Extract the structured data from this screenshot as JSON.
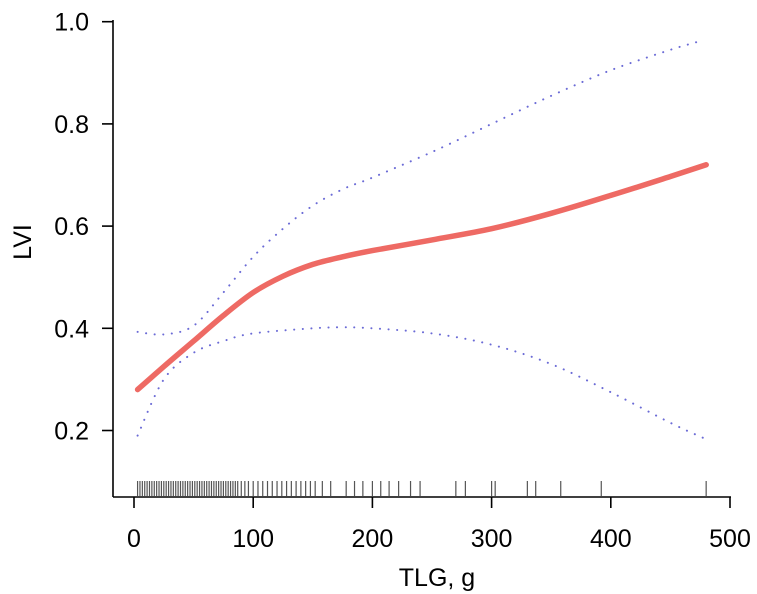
{
  "chart_data": {
    "type": "line",
    "xlabel": "TLG, g",
    "ylabel": "LVI",
    "xlim": [
      0,
      500
    ],
    "ylim": [
      0.2,
      1.0
    ],
    "x_ticks": [
      "0",
      "100",
      "200",
      "300",
      "400",
      "500"
    ],
    "y_ticks": [
      "0.2",
      "0.4",
      "0.6",
      "0.8",
      "1.0"
    ],
    "grid": false,
    "legend": "none",
    "series": [
      {
        "role": "fit",
        "style": "solid",
        "color": "#ee6a64",
        "x": [
          3,
          25,
          50,
          75,
          100,
          125,
          150,
          175,
          200,
          250,
          300,
          350,
          400,
          450,
          480
        ],
        "y": [
          0.28,
          0.325,
          0.375,
          0.425,
          0.47,
          0.502,
          0.525,
          0.54,
          0.552,
          0.573,
          0.595,
          0.625,
          0.66,
          0.697,
          0.72
        ]
      },
      {
        "role": "upper-ci",
        "style": "dotted",
        "color": "#6b6bd6",
        "x": [
          3,
          25,
          50,
          75,
          100,
          125,
          150,
          175,
          200,
          250,
          300,
          350,
          400,
          450,
          475
        ],
        "y": [
          0.393,
          0.388,
          0.405,
          0.47,
          0.54,
          0.595,
          0.64,
          0.672,
          0.695,
          0.745,
          0.8,
          0.855,
          0.905,
          0.945,
          0.962
        ]
      },
      {
        "role": "lower-ci",
        "style": "dotted",
        "color": "#6b6bd6",
        "x": [
          3,
          25,
          50,
          75,
          100,
          150,
          175,
          200,
          250,
          300,
          350,
          400,
          450,
          480
        ],
        "y": [
          0.19,
          0.3,
          0.352,
          0.375,
          0.39,
          0.4,
          0.402,
          0.4,
          0.39,
          0.368,
          0.33,
          0.275,
          0.215,
          0.183
        ]
      }
    ],
    "rug": [
      3,
      5,
      7,
      9,
      11,
      13,
      15,
      17,
      19,
      21,
      23,
      25,
      27,
      29,
      31,
      33,
      35,
      37,
      39,
      41,
      43,
      45,
      47,
      49,
      51,
      53,
      55,
      57,
      59,
      61,
      63,
      65,
      67,
      69,
      71,
      73,
      75,
      77,
      79,
      81,
      83,
      85,
      87,
      90,
      93,
      96,
      100,
      104,
      108,
      112,
      116,
      120,
      124,
      128,
      132,
      136,
      140,
      144,
      148,
      152,
      158,
      165,
      178,
      185,
      192,
      200,
      207,
      214,
      222,
      232,
      240,
      270,
      278,
      300,
      303,
      330,
      337,
      358,
      392,
      480
    ]
  }
}
